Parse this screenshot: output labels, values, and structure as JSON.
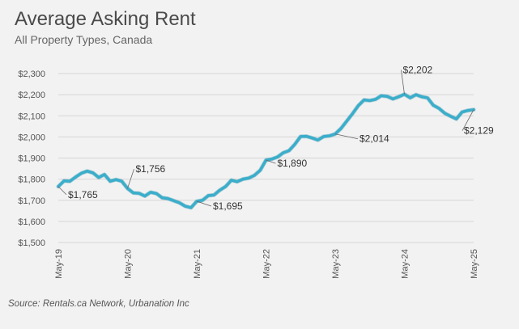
{
  "chart_data": {
    "type": "line",
    "title": "Average Asking Rent",
    "subtitle": "All Property Types, Canada",
    "source": "Source: Rentals.ca Network, Urbanation Inc",
    "xlabel": "",
    "ylabel": "",
    "ylim": [
      1500,
      2300
    ],
    "yticks": [
      1500,
      1600,
      1700,
      1800,
      1900,
      2000,
      2100,
      2200,
      2300
    ],
    "ytick_labels": [
      "$1,500",
      "$1,600",
      "$1,700",
      "$1,800",
      "$1,900",
      "$2,000",
      "$2,100",
      "$2,200",
      "$2,300"
    ],
    "xtick_labels": [
      "May-19",
      "May-20",
      "May-21",
      "May-22",
      "May-23",
      "May-24",
      "May-25"
    ],
    "grid": true,
    "line_color": "#3aaecb",
    "series": [
      {
        "values": [
          1765,
          1792,
          1790,
          1810,
          1828,
          1838,
          1830,
          1808,
          1822,
          1790,
          1798,
          1790,
          1756,
          1735,
          1733,
          1720,
          1738,
          1732,
          1712,
          1708,
          1698,
          1688,
          1672,
          1665,
          1695,
          1700,
          1722,
          1725,
          1748,
          1765,
          1795,
          1788,
          1800,
          1805,
          1818,
          1842,
          1890,
          1895,
          1905,
          1925,
          1935,
          1965,
          2002,
          2003,
          1995,
          1985,
          2002,
          2005,
          2014,
          2040,
          2075,
          2110,
          2148,
          2175,
          2172,
          2178,
          2195,
          2192,
          2180,
          2190,
          2202,
          2185,
          2200,
          2190,
          2185,
          2150,
          2135,
          2112,
          2098,
          2085,
          2118,
          2125,
          2129
        ]
      }
    ],
    "annotations": [
      {
        "label": "$1,765",
        "index": 0
      },
      {
        "label": "$1,756",
        "index": 12
      },
      {
        "label": "$1,695",
        "index": 24
      },
      {
        "label": "$1,890",
        "index": 36
      },
      {
        "label": "$2,014",
        "index": 48
      },
      {
        "label": "$2,202",
        "index": 60
      },
      {
        "label": "$2,129",
        "index": 72
      }
    ]
  }
}
